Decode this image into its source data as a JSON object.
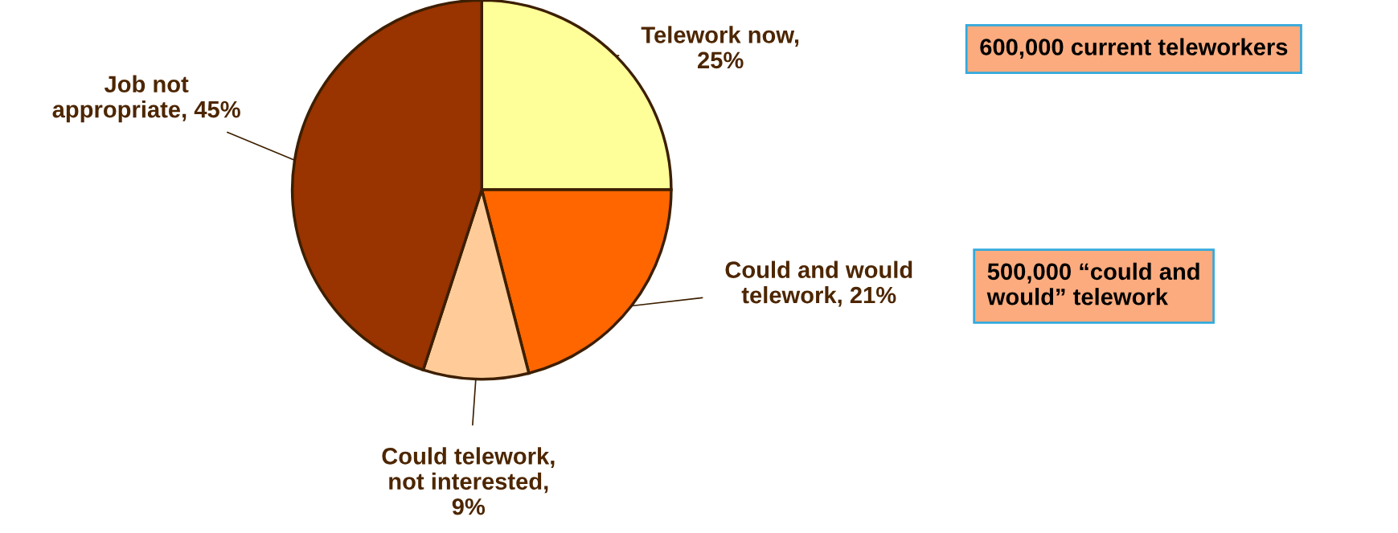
{
  "chart_data": {
    "type": "pie",
    "categories": [
      "Telework now,\n25%",
      "Could and would\ntelework, 21%",
      "Could telework,\nnot interested,\n9%",
      "Job not\nappropriate, 45%"
    ],
    "values": [
      25,
      21,
      9,
      45
    ],
    "colors": [
      "#ffff99",
      "#ff6600",
      "#ffcc99",
      "#993300"
    ],
    "annotations": [
      "600,000 current teleworkers",
      "500,000 “could and\nwould” telework"
    ]
  }
}
